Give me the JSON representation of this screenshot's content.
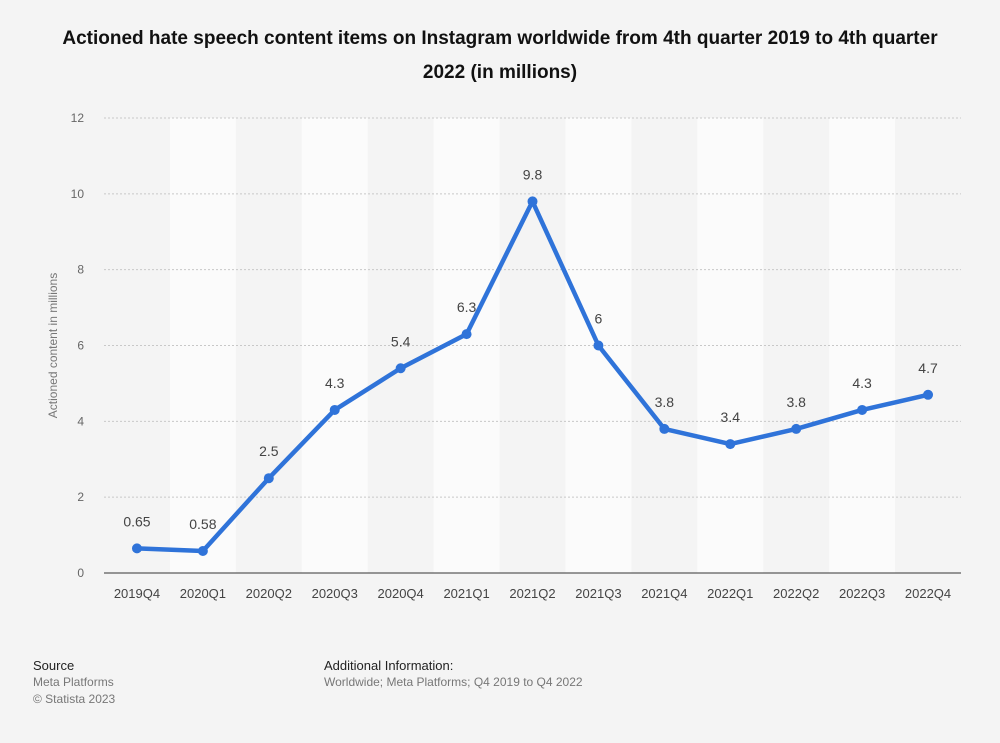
{
  "chart_data": {
    "type": "line",
    "title": "Actioned hate speech content items on Instagram worldwide from 4th quarter 2019 to 4th quarter 2022 (in millions)",
    "xlabel": "",
    "ylabel": "Actioned content in millions",
    "ylim": [
      0,
      12
    ],
    "yticks": [
      0,
      2,
      4,
      6,
      8,
      10,
      12
    ],
    "categories": [
      "2019Q4",
      "2020Q1",
      "2020Q2",
      "2020Q3",
      "2020Q4",
      "2021Q1",
      "2021Q2",
      "2021Q3",
      "2021Q4",
      "2022Q1",
      "2022Q2",
      "2022Q3",
      "2022Q4"
    ],
    "values": [
      0.65,
      0.58,
      2.5,
      4.3,
      5.4,
      6.3,
      9.8,
      6,
      3.8,
      3.4,
      3.8,
      4.3,
      4.7
    ],
    "grid": true,
    "colors": {
      "line": "#2f73d9",
      "band": "#fbfbfb",
      "grid": "#c8c8c8"
    }
  },
  "footer": {
    "source_label": "Source",
    "source_lines": [
      "Meta Platforms",
      "© Statista 2023"
    ],
    "additional_label": "Additional Information:",
    "additional_text": "Worldwide; Meta Platforms; Q4 2019 to Q4 2022"
  }
}
